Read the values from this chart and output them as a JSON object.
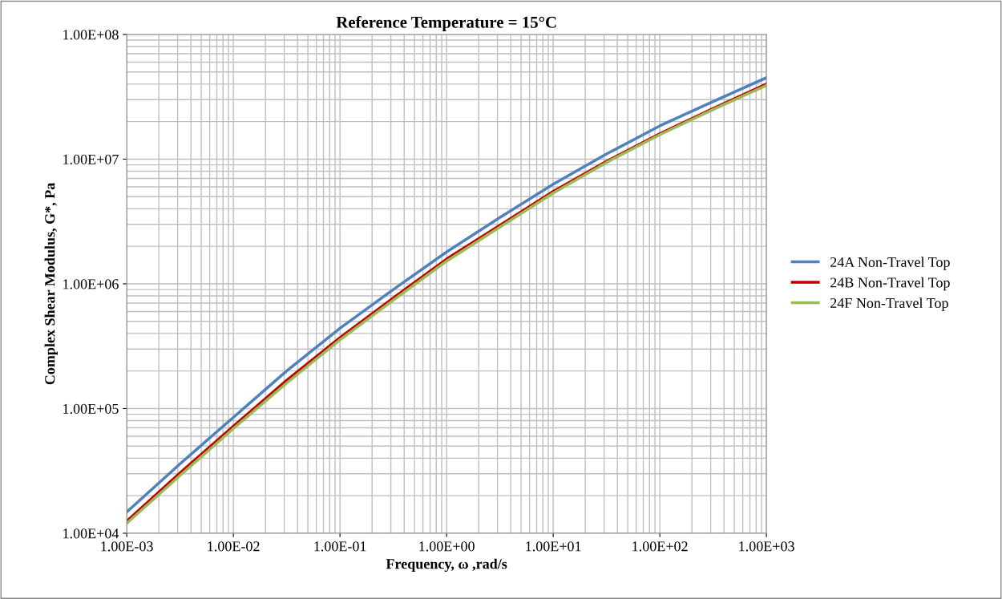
{
  "chart_data": {
    "type": "line",
    "title": "Reference Temperature = 15°C",
    "xlabel": "Frequency, ω ,rad/s",
    "ylabel": "Complex Shear Modulus, G*, Pa",
    "log": "xy",
    "grid": true,
    "legend": "right",
    "marker": "none",
    "line_style": "solid",
    "x": [
      0.001,
      0.00316,
      0.01,
      0.0316,
      0.1,
      0.316,
      1,
      3.16,
      10,
      31.6,
      100,
      316,
      1000
    ],
    "xlim": [
      0.001,
      1000
    ],
    "ylim": [
      10000,
      100000000
    ],
    "xticks": [
      {
        "value": 0.001,
        "label": "1.00E-03"
      },
      {
        "value": 0.01,
        "label": "1.00E-02"
      },
      {
        "value": 0.1,
        "label": "1.00E-01"
      },
      {
        "value": 1,
        "label": "1.00E+00"
      },
      {
        "value": 10,
        "label": "1.00E+01"
      },
      {
        "value": 100,
        "label": "1.00E+02"
      },
      {
        "value": 1000,
        "label": "1.00E+03"
      }
    ],
    "yticks": [
      {
        "value": 10000,
        "label": "1.00E+04"
      },
      {
        "value": 100000,
        "label": "1.00E+05"
      },
      {
        "value": 1000000,
        "label": "1.00E+06"
      },
      {
        "value": 10000000,
        "label": "1.00E+07"
      },
      {
        "value": 100000000,
        "label": "1.00E+08"
      }
    ],
    "series": [
      {
        "name": "24A Non-Travel Top",
        "color": "#4f81bd",
        "values": [
          14800,
          36000,
          85000,
          200000,
          440000,
          900000,
          1800000,
          3400000,
          6300000,
          11000000,
          18500000,
          29000000,
          45000000
        ]
      },
      {
        "name": "24B Non-Travel Top",
        "color": "#c00000",
        "values": [
          12500,
          30500,
          72000,
          168000,
          370000,
          770000,
          1580000,
          2950000,
          5500000,
          9600000,
          16000000,
          25500000,
          40000000
        ]
      },
      {
        "name": "24F Non-Travel Top",
        "color": "#9bbb59",
        "values": [
          12000,
          29000,
          69000,
          160000,
          355000,
          740000,
          1520000,
          2850000,
          5350000,
          9400000,
          15700000,
          25000000,
          39000000
        ]
      }
    ]
  }
}
